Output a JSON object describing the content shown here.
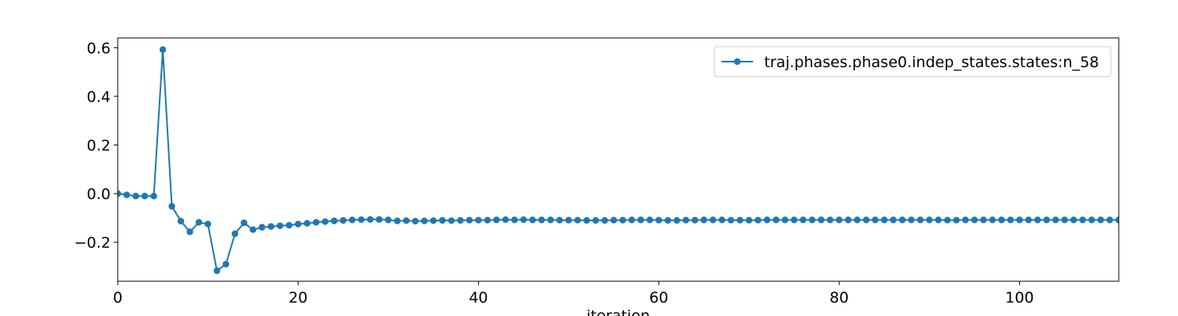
{
  "chart_data": {
    "type": "line",
    "title": "",
    "xlabel": "iteration",
    "ylabel": "",
    "xlim": [
      0,
      111
    ],
    "ylim": [
      -0.36,
      0.64
    ],
    "xticks": [
      0,
      20,
      40,
      60,
      80,
      100
    ],
    "yticks": [
      -0.2,
      0.0,
      0.2,
      0.4,
      0.6
    ],
    "ytick_labels": [
      "−0.2",
      "0.0",
      "0.2",
      "0.4",
      "0.6"
    ],
    "grid": false,
    "legend": "top-right",
    "series": [
      {
        "name": "traj.phases.phase0.indep_states.states:n_58",
        "color": "#1f77b4",
        "marker": "circle",
        "x": [
          0,
          1,
          2,
          3,
          4,
          5,
          6,
          7,
          8,
          9,
          10,
          11,
          12,
          13,
          14,
          15,
          16,
          17,
          18,
          19,
          20,
          21,
          22,
          23,
          24,
          25,
          26,
          27,
          28,
          29,
          30,
          31,
          32,
          33,
          34,
          35,
          36,
          37,
          38,
          39,
          40,
          41,
          42,
          43,
          44,
          45,
          46,
          47,
          48,
          49,
          50,
          51,
          52,
          53,
          54,
          55,
          56,
          57,
          58,
          59,
          60,
          61,
          62,
          63,
          64,
          65,
          66,
          67,
          68,
          69,
          70,
          71,
          72,
          73,
          74,
          75,
          76,
          77,
          78,
          79,
          80,
          81,
          82,
          83,
          84,
          85,
          86,
          87,
          88,
          89,
          90,
          91,
          92,
          93,
          94,
          95,
          96,
          97,
          98,
          99,
          100,
          101,
          102,
          103,
          104,
          105,
          106,
          107,
          108,
          109,
          110,
          111
        ],
        "y": [
          0.0,
          -0.005,
          -0.01,
          -0.01,
          -0.01,
          0.592,
          -0.052,
          -0.113,
          -0.157,
          -0.118,
          -0.125,
          -0.317,
          -0.29,
          -0.165,
          -0.12,
          -0.148,
          -0.138,
          -0.135,
          -0.132,
          -0.13,
          -0.125,
          -0.122,
          -0.118,
          -0.115,
          -0.112,
          -0.11,
          -0.108,
          -0.107,
          -0.106,
          -0.106,
          -0.108,
          -0.112,
          -0.111,
          -0.113,
          -0.112,
          -0.111,
          -0.11,
          -0.111,
          -0.11,
          -0.109,
          -0.109,
          -0.109,
          -0.108,
          -0.107,
          -0.108,
          -0.107,
          -0.108,
          -0.108,
          -0.108,
          -0.109,
          -0.109,
          -0.109,
          -0.11,
          -0.11,
          -0.11,
          -0.109,
          -0.109,
          -0.108,
          -0.108,
          -0.108,
          -0.109,
          -0.11,
          -0.11,
          -0.109,
          -0.109,
          -0.108,
          -0.108,
          -0.108,
          -0.109,
          -0.109,
          -0.109,
          -0.109,
          -0.108,
          -0.108,
          -0.108,
          -0.108,
          -0.108,
          -0.108,
          -0.108,
          -0.108,
          -0.108,
          -0.108,
          -0.108,
          -0.108,
          -0.108,
          -0.108,
          -0.108,
          -0.108,
          -0.108,
          -0.108,
          -0.108,
          -0.108,
          -0.109,
          -0.109,
          -0.108,
          -0.108,
          -0.108,
          -0.108,
          -0.108,
          -0.108,
          -0.108,
          -0.108,
          -0.108,
          -0.108,
          -0.108,
          -0.108,
          -0.108,
          -0.108,
          -0.108,
          -0.108,
          -0.108,
          -0.108
        ]
      }
    ]
  }
}
